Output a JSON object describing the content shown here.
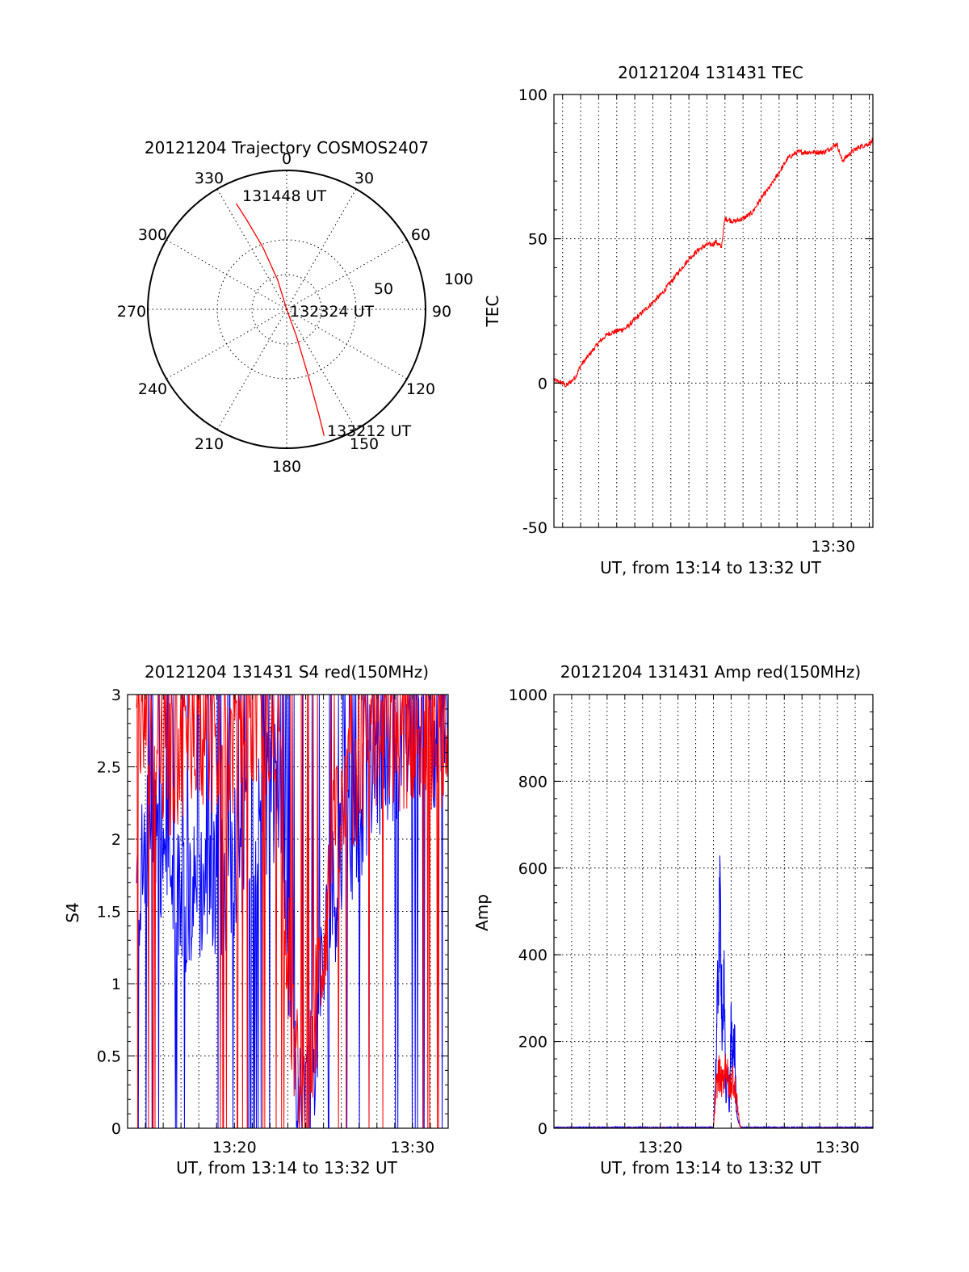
{
  "colors": {
    "red": "#ff0000",
    "blue": "#0000ff",
    "axis": "#000000",
    "background": "#ffffff"
  },
  "chart_data": [
    {
      "id": "trajectory",
      "type": "polar",
      "title": "20121204 Trajectory COSMOS2407",
      "azimuth_labels": [
        "0",
        "30",
        "60",
        "90",
        "120",
        "150",
        "180",
        "210",
        "240",
        "270",
        "300",
        "330"
      ],
      "radial_labels": [
        "50",
        "100"
      ],
      "grid": true,
      "series": [
        {
          "color": "#ff0000",
          "azimuth_deg": [
            -25.5,
            -24,
            -21,
            -17,
            0,
            160,
            162,
            163,
            163.5
          ],
          "radius": [
            84.5,
            70,
            48,
            22,
            0,
            20,
            50,
            80,
            95
          ]
        }
      ],
      "annotations": [
        {
          "text": "131448 UT",
          "at": "start"
        },
        {
          "text": "132324 UT",
          "at": "zenith"
        },
        {
          "text": "133212 UT",
          "at": "end"
        }
      ]
    },
    {
      "id": "tec",
      "type": "line",
      "title": "20121204 131431 TEC",
      "ylabel": "TEC",
      "xlabel": "UT, from 13:14 to 13:32 UT",
      "x_unit": "minutes of hour 13",
      "xlim": [
        14.52,
        32.2
      ],
      "ylim": [
        -50,
        100
      ],
      "yticks": [
        "-50",
        "0",
        "50",
        "100"
      ],
      "xtick_labels": [
        {
          "x": 30,
          "label": "13:30"
        }
      ],
      "grid": true,
      "series": [
        {
          "color": "#ff0000",
          "x": [
            14.52,
            15,
            15.2,
            15.7,
            16,
            16.5,
            17,
            17.5,
            18,
            18.5,
            19,
            19.5,
            20,
            20.5,
            21,
            21.5,
            22,
            22.5,
            23,
            23.3,
            23.5,
            23.8,
            24,
            24.5,
            25,
            25.5,
            26,
            26.5,
            27,
            27.5,
            28,
            28.5,
            29,
            29.5,
            30,
            30.2,
            30.5,
            31,
            31.5,
            32,
            32.2
          ],
          "y": [
            1,
            0,
            -1,
            2,
            6,
            10,
            14,
            17,
            18,
            19,
            22,
            25,
            28,
            31,
            35,
            39,
            43,
            46,
            48,
            48,
            49,
            47,
            57,
            56,
            57,
            59,
            64,
            68,
            73,
            78,
            80,
            80,
            80,
            80,
            82,
            83,
            77,
            80,
            82,
            83,
            84
          ]
        }
      ]
    },
    {
      "id": "s4",
      "type": "line",
      "title": "20121204 131431 S4 red(150MHz)",
      "ylabel": "S4",
      "xlabel": "UT, from 13:14 to 13:32 UT",
      "x_unit": "minutes of hour 13",
      "xlim": [
        14,
        32
      ],
      "ylim": [
        0,
        3
      ],
      "yticks": [
        "0",
        "0.5",
        "1",
        "1.5",
        "2",
        "2.5",
        "3"
      ],
      "xtick_labels": [
        {
          "x": 20,
          "label": "13:20"
        },
        {
          "x": 30,
          "label": "13:30"
        }
      ],
      "grid": true,
      "series": [
        {
          "color": "#0000ff",
          "noisy": true,
          "x": [
            14.5,
            15.5,
            16.5,
            17.5,
            18.5,
            19.5,
            20.5,
            21.5,
            22.5,
            23,
            23.3,
            23.6,
            24,
            24.5,
            25.5,
            26.5,
            27.5,
            28.5,
            29.5,
            30.5,
            31.5,
            32
          ],
          "y": [
            1.6,
            2.2,
            1.6,
            1.6,
            1.7,
            1.7,
            2.0,
            2.2,
            2.3,
            1.3,
            0.8,
            0.15,
            0.15,
            0.6,
            1.6,
            2.0,
            2.4,
            2.6,
            2.7,
            2.8,
            2.7,
            2.8
          ]
        },
        {
          "color": "#ff0000",
          "noisy": true,
          "x": [
            14.5,
            15.5,
            16.5,
            17.5,
            18.5,
            19.5,
            20.5,
            21.5,
            22.5,
            23,
            23.3,
            23.6,
            24,
            24.5,
            25.5,
            26.5,
            27.5,
            28.5,
            29.5,
            30.5,
            31.5,
            32
          ],
          "y": [
            2.9,
            2.6,
            2.5,
            2.8,
            2.7,
            2.6,
            2.7,
            2.9,
            2.6,
            1.2,
            0.7,
            0.2,
            0.2,
            0.7,
            1.9,
            2.3,
            2.6,
            2.7,
            2.7,
            2.8,
            2.6,
            2.7
          ]
        }
      ]
    },
    {
      "id": "amp",
      "type": "line",
      "title": "20121204 131431 Amp red(150MHz)",
      "ylabel": "Amp",
      "xlabel": "UT, from 13:14 to 13:32 UT",
      "x_unit": "minutes of hour 13",
      "xlim": [
        14,
        32
      ],
      "ylim": [
        0,
        1000
      ],
      "yticks": [
        "0",
        "200",
        "400",
        "600",
        "800",
        "1000"
      ],
      "xtick_labels": [
        {
          "x": 20,
          "label": "13:20"
        },
        {
          "x": 30,
          "label": "13:30"
        }
      ],
      "grid": true,
      "series": [
        {
          "color": "#0000ff",
          "noisy": false,
          "x": [
            14,
            23.0,
            23.15,
            23.3,
            23.4,
            23.5,
            23.6,
            23.7,
            23.8,
            23.9,
            24.0,
            24.1,
            24.2,
            24.3,
            24.5,
            24.6,
            32
          ],
          "y": [
            2,
            2,
            150,
            420,
            500,
            230,
            320,
            60,
            150,
            30,
            250,
            170,
            200,
            30,
            5,
            2,
            2
          ]
        },
        {
          "color": "#ff0000",
          "noisy": false,
          "x": [
            14,
            23.0,
            23.15,
            23.3,
            23.5,
            23.7,
            23.9,
            24.1,
            24.3,
            24.5,
            24.6,
            32
          ],
          "y": [
            0,
            0,
            90,
            130,
            100,
            150,
            90,
            120,
            70,
            5,
            0,
            0
          ]
        }
      ]
    }
  ]
}
